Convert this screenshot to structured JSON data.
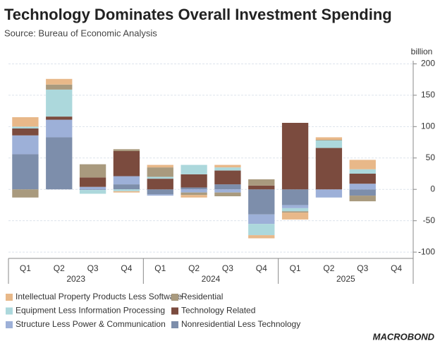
{
  "chart_data": {
    "type": "stacked-bar",
    "title": "Technology Dominates Overall Investment Spending",
    "subtitle": "Source: Bureau of Economic Analysis",
    "y_axis_label": "billion",
    "categories": [
      "Q1",
      "Q2",
      "Q3",
      "Q4",
      "Q1",
      "Q2",
      "Q3",
      "Q4",
      "Q1",
      "Q2",
      "Q3",
      "Q4"
    ],
    "groups": [
      "2023",
      "2024",
      "2025"
    ],
    "series": [
      {
        "name": "Intellectual Property Products Less Software",
        "color": "#e8b889",
        "values": [
          15,
          9,
          0,
          -2,
          4,
          -4,
          4,
          -5,
          -11,
          4,
          15,
          null
        ]
      },
      {
        "name": "Residential",
        "color": "#a99a7e",
        "values": [
          -13,
          8,
          21,
          3,
          15,
          -4,
          -6,
          10,
          -2,
          1,
          -9,
          null
        ]
      },
      {
        "name": "Equipment Less Information Processing",
        "color": "#acd8dc",
        "values": [
          3,
          43,
          -6,
          -3,
          3,
          15,
          5,
          -18,
          -5,
          12,
          7,
          null
        ]
      },
      {
        "name": "Technology Related",
        "color": "#7b4b3e",
        "values": [
          11,
          5,
          15,
          40,
          17,
          21,
          22,
          6,
          106,
          66,
          16,
          null
        ]
      },
      {
        "name": "Structure Less Power & Communication",
        "color": "#9db0d8",
        "values": [
          30,
          28,
          4,
          13,
          -2,
          -5,
          -5,
          -15,
          -5,
          -13,
          9,
          null
        ]
      },
      {
        "name": "Nonresidential Less Technology",
        "color": "#7d8eab",
        "values": [
          56,
          83,
          -1,
          8,
          -8,
          3,
          8,
          -40,
          -25,
          0,
          -10,
          null
        ]
      }
    ],
    "ylim": [
      -110,
      205
    ],
    "yticks": [
      -100,
      -50,
      0,
      50,
      100,
      150,
      200
    ],
    "grid": true,
    "logo": "MACROBOND"
  }
}
